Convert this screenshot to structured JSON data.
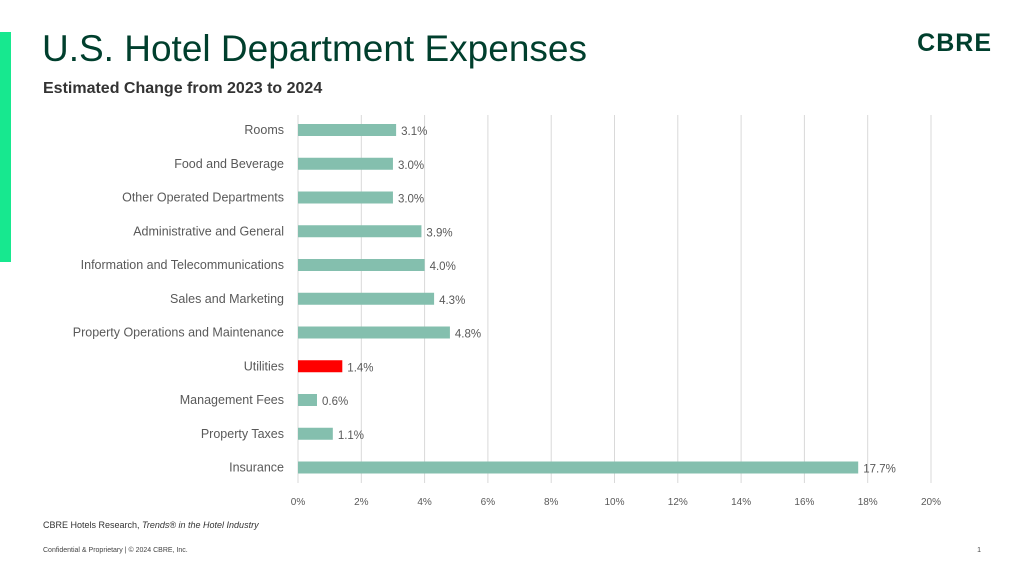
{
  "header": {
    "title": "U.S. Hotel Department Expenses",
    "subtitle": "Estimated Change from 2023 to 2024",
    "logo_text": "CBRE"
  },
  "footer": {
    "source_prefix": "CBRE Hotels Research, ",
    "source_title": "Trends® in the Hotel Industry",
    "confidential": "Confidential & Proprietary | © 2024 CBRE, Inc.",
    "page_number": "1"
  },
  "colors": {
    "accent": "#17e88f",
    "brand": "#003f2d",
    "bar": "#84bfae",
    "highlight": "#ff0000"
  },
  "chart_data": {
    "type": "bar",
    "orientation": "horizontal",
    "categories": [
      "Rooms",
      "Food and Beverage",
      "Other Operated Departments",
      "Administrative and General",
      "Information and Telecommunications",
      "Sales and Marketing",
      "Property Operations and Maintenance",
      "Utilities",
      "Management Fees",
      "Property Taxes",
      "Insurance"
    ],
    "values": [
      3.1,
      3.0,
      3.0,
      3.9,
      4.0,
      4.3,
      4.8,
      1.4,
      0.6,
      1.1,
      17.7
    ],
    "value_labels": [
      "3.1%",
      "3.0%",
      "3.0%",
      "3.9%",
      "4.0%",
      "4.3%",
      "4.8%",
      "1.4%",
      "0.6%",
      "1.1%",
      "17.7%"
    ],
    "highlight_category": "Utilities",
    "xlim": [
      0,
      20
    ],
    "xticks": [
      0,
      2,
      4,
      6,
      8,
      10,
      12,
      14,
      16,
      18,
      20
    ],
    "xtick_labels": [
      "0%",
      "2%",
      "4%",
      "6%",
      "8%",
      "10%",
      "12%",
      "14%",
      "16%",
      "18%",
      "20%"
    ],
    "grid": "vertical"
  }
}
